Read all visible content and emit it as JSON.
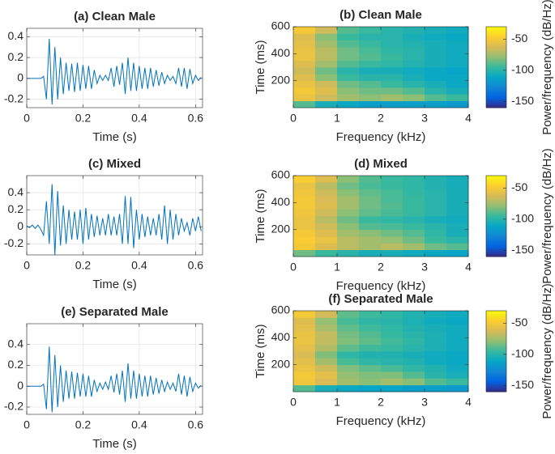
{
  "chart_data": [
    {
      "type": "line",
      "title": "(a) Clean Male",
      "x_label": "Time (s)",
      "color": "#0072bd",
      "grid": true,
      "x": [
        0,
        0.01,
        0.02,
        0.03,
        0.04,
        0.05,
        0.06,
        0.07,
        0.08,
        0.09,
        0.1,
        0.11,
        0.12,
        0.13,
        0.14,
        0.15,
        0.16,
        0.17,
        0.18,
        0.19,
        0.2,
        0.21,
        0.22,
        0.23,
        0.24,
        0.25,
        0.26,
        0.27,
        0.28,
        0.29,
        0.3,
        0.31,
        0.32,
        0.33,
        0.34,
        0.35,
        0.36,
        0.37,
        0.38,
        0.39,
        0.4,
        0.41,
        0.42,
        0.43,
        0.44,
        0.45,
        0.46,
        0.47,
        0.48,
        0.49,
        0.5,
        0.51,
        0.52,
        0.53,
        0.54,
        0.55,
        0.56,
        0.57,
        0.58,
        0.59,
        0.6,
        0.61,
        0.62
      ],
      "values": [
        0,
        0,
        0,
        0,
        0,
        0,
        0.02,
        -0.2,
        0.38,
        -0.25,
        0.3,
        -0.2,
        0.2,
        -0.15,
        0.15,
        -0.12,
        0.14,
        -0.13,
        0.15,
        -0.12,
        0.13,
        -0.1,
        0.12,
        -0.1,
        0.08,
        -0.05,
        0.03,
        -0.02,
        0.03,
        -0.02,
        0.1,
        -0.08,
        0.12,
        -0.06,
        0.15,
        -0.15,
        0.2,
        -0.12,
        0.15,
        -0.12,
        0.12,
        -0.1,
        0.1,
        -0.1,
        0.1,
        -0.08,
        0.08,
        -0.07,
        0.06,
        -0.05,
        0.03,
        -0.02,
        0.02,
        -0.05,
        0.1,
        -0.08,
        0.1,
        -0.1,
        0.09,
        -0.05,
        0.03,
        -0.02,
        0.01
      ],
      "xlim": [
        0,
        0.625
      ],
      "xticks": [
        0,
        0.2,
        0.4,
        0.6
      ],
      "ylim": [
        -0.28,
        0.48
      ],
      "yticks": [
        -0.2,
        0,
        0.2,
        0.4
      ]
    },
    {
      "type": "heatmap",
      "title": "(b) Clean Male",
      "x_label": "Frequency (kHz)",
      "y_label": "Time (ms)",
      "colorbar_label": "Power/frequency (dB/Hz)",
      "colormap": "parula",
      "xbins": [
        0,
        0.5,
        1,
        1.5,
        2,
        2.5,
        3,
        3.5,
        4
      ],
      "ybins": [
        0,
        50,
        100,
        150,
        200,
        250,
        300,
        350,
        400,
        450,
        500,
        550,
        600
      ],
      "z": [
        [
          -90,
          -105,
          -110,
          -115,
          -115,
          -115,
          -115,
          -118
        ],
        [
          -55,
          -65,
          -75,
          -80,
          -75,
          -80,
          -90,
          -95
        ],
        [
          -50,
          -60,
          -80,
          -85,
          -85,
          -90,
          -100,
          -105
        ],
        [
          -55,
          -65,
          -85,
          -90,
          -95,
          -100,
          -105,
          -110
        ],
        [
          -60,
          -80,
          -95,
          -100,
          -100,
          -105,
          -110,
          -110
        ],
        [
          -65,
          -85,
          -100,
          -105,
          -105,
          -108,
          -110,
          -112
        ],
        [
          -60,
          -75,
          -90,
          -95,
          -98,
          -102,
          -105,
          -108
        ],
        [
          -55,
          -70,
          -85,
          -90,
          -95,
          -100,
          -105,
          -108
        ],
        [
          -55,
          -70,
          -85,
          -92,
          -98,
          -100,
          -105,
          -108
        ],
        [
          -58,
          -75,
          -90,
          -95,
          -100,
          -102,
          -105,
          -108
        ],
        [
          -60,
          -80,
          -95,
          -100,
          -100,
          -105,
          -108,
          -110
        ],
        [
          -50,
          -65,
          -90,
          -95,
          -100,
          -102,
          -105,
          -108
        ]
      ],
      "xlim": [
        0,
        4
      ],
      "xticks": [
        0,
        1,
        2,
        3,
        4
      ],
      "ylim": [
        0,
        600
      ],
      "yticks": [
        200,
        400,
        600
      ],
      "clim": [
        -160,
        -30
      ],
      "cticks": [
        -150,
        -100,
        -50
      ]
    },
    {
      "type": "line",
      "title": "(c) Mixed",
      "x_label": "Time (s)",
      "color": "#0072bd",
      "grid": true,
      "x": [
        0,
        0.01,
        0.02,
        0.03,
        0.04,
        0.05,
        0.06,
        0.07,
        0.08,
        0.09,
        0.1,
        0.11,
        0.12,
        0.13,
        0.14,
        0.15,
        0.16,
        0.17,
        0.18,
        0.19,
        0.2,
        0.21,
        0.22,
        0.23,
        0.24,
        0.25,
        0.26,
        0.27,
        0.28,
        0.29,
        0.3,
        0.31,
        0.32,
        0.33,
        0.34,
        0.35,
        0.36,
        0.37,
        0.38,
        0.39,
        0.4,
        0.41,
        0.42,
        0.43,
        0.44,
        0.45,
        0.46,
        0.47,
        0.48,
        0.49,
        0.5,
        0.51,
        0.52,
        0.53,
        0.54,
        0.55,
        0.56,
        0.57,
        0.58,
        0.59,
        0.6,
        0.61,
        0.62
      ],
      "values": [
        0.01,
        -0.01,
        0.02,
        -0.02,
        0.02,
        -0.03,
        -0.1,
        0.3,
        -0.2,
        0.5,
        -0.33,
        0.42,
        -0.22,
        0.25,
        -0.2,
        0.2,
        -0.15,
        0.18,
        -0.15,
        0.2,
        -0.2,
        0.22,
        -0.15,
        0.15,
        -0.12,
        0.13,
        -0.1,
        0.1,
        -0.1,
        0.15,
        -0.1,
        0.12,
        -0.1,
        0.15,
        -0.2,
        0.36,
        -0.2,
        0.35,
        -0.25,
        0.2,
        -0.15,
        0.15,
        -0.12,
        0.12,
        -0.1,
        0.1,
        -0.1,
        0.15,
        -0.15,
        0.25,
        -0.2,
        0.2,
        -0.15,
        0.15,
        -0.1,
        0.1,
        -0.05,
        0.05,
        -0.1,
        0.1,
        -0.05,
        0.12,
        -0.05
      ],
      "xlim": [
        0,
        0.625
      ],
      "xticks": [
        0,
        0.2,
        0.4,
        0.6
      ],
      "ylim": [
        -0.33,
        0.6
      ],
      "yticks": [
        -0.2,
        0,
        0.2,
        0.4
      ]
    },
    {
      "type": "heatmap",
      "title": "(d) Mixed",
      "x_label": "Frequency (kHz)",
      "y_label": "Time (ms)",
      "colorbar_label": "Power/frequency (dB/Hz)",
      "colormap": "parula",
      "xbins": [
        0,
        0.5,
        1,
        1.5,
        2,
        2.5,
        3,
        3.5,
        4
      ],
      "ybins": [
        0,
        50,
        100,
        150,
        200,
        250,
        300,
        350,
        400,
        450,
        500,
        550,
        600
      ],
      "z": [
        [
          -85,
          -95,
          -100,
          -105,
          -105,
          -108,
          -110,
          -112
        ],
        [
          -50,
          -60,
          -70,
          -75,
          -70,
          -75,
          -85,
          -90
        ],
        [
          -48,
          -55,
          -70,
          -75,
          -78,
          -85,
          -95,
          -100
        ],
        [
          -50,
          -60,
          -75,
          -80,
          -85,
          -90,
          -98,
          -105
        ],
        [
          -55,
          -65,
          -80,
          -90,
          -92,
          -95,
          -100,
          -105
        ],
        [
          -55,
          -70,
          -85,
          -95,
          -98,
          -100,
          -105,
          -108
        ],
        [
          -52,
          -65,
          -80,
          -88,
          -92,
          -95,
          -100,
          -105
        ],
        [
          -50,
          -60,
          -75,
          -85,
          -90,
          -95,
          -100,
          -105
        ],
        [
          -50,
          -62,
          -75,
          -85,
          -92,
          -95,
          -100,
          -105
        ],
        [
          -52,
          -65,
          -80,
          -88,
          -92,
          -97,
          -100,
          -105
        ],
        [
          -55,
          -70,
          -85,
          -92,
          -95,
          -98,
          -102,
          -106
        ],
        [
          -48,
          -60,
          -80,
          -90,
          -95,
          -98,
          -102,
          -106
        ]
      ],
      "xlim": [
        0,
        4
      ],
      "xticks": [
        0,
        1,
        2,
        3,
        4
      ],
      "ylim": [
        0,
        600
      ],
      "yticks": [
        200,
        400,
        600
      ],
      "clim": [
        -160,
        -30
      ],
      "cticks": [
        -150,
        -100,
        -50
      ]
    },
    {
      "type": "line",
      "title": "(e) Separated Male",
      "x_label": "Time (s)",
      "color": "#0072bd",
      "grid": true,
      "x": [
        0,
        0.01,
        0.02,
        0.03,
        0.04,
        0.05,
        0.06,
        0.07,
        0.08,
        0.09,
        0.1,
        0.11,
        0.12,
        0.13,
        0.14,
        0.15,
        0.16,
        0.17,
        0.18,
        0.19,
        0.2,
        0.21,
        0.22,
        0.23,
        0.24,
        0.25,
        0.26,
        0.27,
        0.28,
        0.29,
        0.3,
        0.31,
        0.32,
        0.33,
        0.34,
        0.35,
        0.36,
        0.37,
        0.38,
        0.39,
        0.4,
        0.41,
        0.42,
        0.43,
        0.44,
        0.45,
        0.46,
        0.47,
        0.48,
        0.49,
        0.5,
        0.51,
        0.52,
        0.53,
        0.54,
        0.55,
        0.56,
        0.57,
        0.58,
        0.59,
        0.6,
        0.61,
        0.62
      ],
      "values": [
        0,
        0,
        0,
        0,
        0,
        0,
        0.02,
        -0.22,
        0.38,
        -0.25,
        0.3,
        -0.2,
        0.2,
        -0.15,
        0.15,
        -0.12,
        0.14,
        -0.12,
        0.13,
        -0.1,
        0.12,
        -0.1,
        0.1,
        -0.1,
        0.06,
        -0.05,
        0.03,
        -0.03,
        0.04,
        -0.03,
        0.1,
        -0.06,
        0.12,
        -0.08,
        0.15,
        -0.15,
        0.22,
        -0.12,
        0.15,
        -0.12,
        0.12,
        -0.1,
        0.1,
        -0.1,
        0.1,
        -0.08,
        0.08,
        -0.07,
        0.06,
        -0.05,
        0.04,
        -0.03,
        0.03,
        -0.05,
        0.12,
        -0.08,
        0.1,
        -0.1,
        0.09,
        -0.05,
        0.03,
        -0.02,
        0.01
      ],
      "xlim": [
        0,
        0.625
      ],
      "xticks": [
        0,
        0.2,
        0.4,
        0.6
      ],
      "ylim": [
        -0.27,
        0.6
      ],
      "yticks": [
        -0.2,
        0,
        0.2,
        0.4
      ]
    },
    {
      "type": "heatmap",
      "title": "(f) Separated Male",
      "x_label": "Frequency (kHz)",
      "y_label": "Time (ms)",
      "colorbar_label": "Power/frequency (dB/Hz)",
      "colormap": "parula",
      "xbins": [
        0,
        0.5,
        1,
        1.5,
        2,
        2.5,
        3,
        3.5,
        4
      ],
      "ybins": [
        0,
        50,
        100,
        150,
        200,
        250,
        300,
        350,
        400,
        450,
        500,
        550,
        600
      ],
      "z": [
        [
          -90,
          -105,
          -110,
          -112,
          -112,
          -115,
          -115,
          -118
        ],
        [
          -52,
          -62,
          -75,
          -80,
          -75,
          -80,
          -90,
          -95
        ],
        [
          -50,
          -58,
          -78,
          -82,
          -82,
          -90,
          -100,
          -105
        ],
        [
          -55,
          -65,
          -82,
          -88,
          -92,
          -98,
          -102,
          -108
        ],
        [
          -58,
          -75,
          -92,
          -98,
          -100,
          -102,
          -108,
          -110
        ],
        [
          -62,
          -82,
          -98,
          -102,
          -102,
          -105,
          -108,
          -110
        ],
        [
          -58,
          -72,
          -88,
          -94,
          -96,
          -100,
          -104,
          -108
        ],
        [
          -55,
          -68,
          -82,
          -88,
          -93,
          -98,
          -104,
          -108
        ],
        [
          -55,
          -68,
          -84,
          -90,
          -96,
          -100,
          -104,
          -108
        ],
        [
          -58,
          -74,
          -88,
          -94,
          -98,
          -102,
          -105,
          -108
        ],
        [
          -60,
          -78,
          -92,
          -98,
          -100,
          -104,
          -108,
          -110
        ],
        [
          -50,
          -64,
          -88,
          -94,
          -98,
          -102,
          -105,
          -108
        ]
      ],
      "xlim": [
        0,
        4
      ],
      "xticks": [
        0,
        1,
        2,
        3,
        4
      ],
      "ylim": [
        0,
        600
      ],
      "yticks": [
        200,
        400,
        600
      ],
      "clim": [
        -160,
        -30
      ],
      "cticks": [
        -150,
        -100,
        -50
      ]
    }
  ]
}
